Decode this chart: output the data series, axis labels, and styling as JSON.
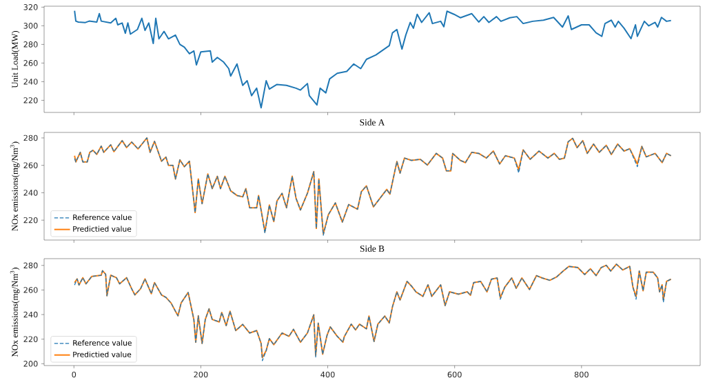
{
  "chart_data": [
    {
      "type": "line",
      "ylabel": "Unit Load(MW)",
      "xlim": [
        -47,
        987
      ],
      "xticks": [
        0,
        200,
        400,
        600,
        800
      ],
      "ylim": [
        207,
        321
      ],
      "yticks": [
        220,
        240,
        260,
        280,
        300,
        320
      ],
      "tick_labels": "y",
      "x": [
        1,
        3,
        7,
        18,
        24,
        36,
        40,
        43,
        58,
        66,
        69,
        76,
        81,
        85,
        89,
        100,
        107,
        112,
        118,
        125,
        129,
        134,
        142,
        149,
        160,
        167,
        174,
        182,
        189,
        193,
        200,
        215,
        218,
        226,
        236,
        244,
        247,
        257,
        262,
        266,
        273,
        280,
        288,
        295,
        303,
        308,
        320,
        335,
        350,
        357,
        368,
        371,
        383,
        388,
        397,
        403,
        415,
        430,
        441,
        452,
        461,
        476,
        497,
        502,
        509,
        517,
        523,
        530,
        535,
        541,
        548,
        560,
        565,
        578,
        583,
        588,
        599,
        609,
        627,
        638,
        646,
        654,
        666,
        673,
        687,
        698,
        708,
        723,
        740,
        756,
        770,
        779,
        784,
        800,
        812,
        823,
        832,
        837,
        847,
        853,
        858,
        867,
        878,
        885,
        888,
        899,
        906,
        916,
        920,
        926,
        934,
        941
      ],
      "series": [
        {
          "color": "#1f77b4",
          "values": [
            316,
            305,
            304,
            303.5,
            305,
            304,
            313,
            305,
            303,
            308,
            301,
            303,
            292,
            303,
            291,
            296,
            308,
            295,
            303,
            281,
            308,
            286,
            294,
            286,
            290,
            280,
            277,
            270,
            273,
            258,
            272,
            273,
            261,
            266,
            261,
            254,
            246,
            259,
            246,
            236,
            241,
            225,
            233,
            212,
            241,
            232,
            237,
            236,
            233,
            231,
            238,
            225,
            215,
            233,
            228,
            243,
            249,
            251,
            259,
            254,
            264,
            268.7,
            278.7,
            292.4,
            296,
            275,
            290,
            303.6,
            297.4,
            312.3,
            303.6,
            314,
            302.4,
            304.8,
            299,
            315.6,
            312.3,
            308.6,
            313,
            304,
            309.8,
            303.6,
            309.8,
            304.8,
            308.6,
            309.8,
            302.4,
            304.8,
            306,
            309,
            298.6,
            310.6,
            296,
            301,
            301,
            292.4,
            288.7,
            302.4,
            306,
            298.6,
            304.8,
            297.4,
            286.2,
            301,
            288.7,
            304.8,
            299.9,
            303.6,
            298.6,
            309,
            304.8,
            305.6
          ]
        }
      ]
    },
    {
      "type": "line",
      "title": "Side A",
      "ylabel": "NOx emissions(mg/Nm$^{3}$)",
      "xlim": [
        -47,
        987
      ],
      "xticks": [
        0,
        200,
        400,
        600,
        800
      ],
      "ylim": [
        205.5,
        284
      ],
      "yticks": [
        220,
        240,
        260,
        280
      ],
      "tick_labels": "y",
      "legend": "bottom left",
      "x": [
        1,
        3,
        10,
        14,
        21,
        25,
        30,
        36,
        43,
        47,
        58,
        63,
        76,
        83,
        91,
        101,
        109,
        115,
        120,
        127,
        138,
        145,
        149,
        156,
        160,
        167,
        174,
        182,
        191,
        196,
        202,
        211,
        218,
        226,
        231,
        238,
        247,
        257,
        266,
        271,
        277,
        288,
        291,
        301,
        308,
        315,
        320,
        328,
        335,
        344,
        350,
        357,
        368,
        378,
        382,
        386,
        393,
        401,
        412,
        423,
        433,
        447,
        453,
        461,
        472,
        493,
        498,
        509,
        514,
        521,
        532,
        546,
        557,
        571,
        581,
        587,
        594,
        597,
        609,
        617,
        627,
        638,
        650,
        661,
        671,
        680,
        694,
        701,
        708,
        719,
        733,
        747,
        757,
        765,
        773,
        779,
        786,
        793,
        802,
        809,
        819,
        828,
        839,
        847,
        857,
        867,
        876,
        888,
        895,
        902,
        916,
        927,
        934,
        941
      ],
      "series": [
        {
          "name": "Reference value",
          "color": "#1f77b4",
          "line_style": "dashed",
          "values": [
            265,
            262.5,
            269.5,
            262.5,
            262.5,
            269.5,
            271,
            268,
            274,
            269.5,
            275,
            270,
            278,
            273,
            277,
            272,
            276.5,
            280,
            269.5,
            277.5,
            263,
            266,
            260,
            260,
            250,
            264,
            259,
            263,
            225.6,
            250,
            232,
            253.7,
            243,
            252,
            243,
            252,
            241.4,
            238,
            237,
            243,
            229,
            229,
            238,
            210.5,
            231,
            219,
            234,
            239.6,
            229,
            252,
            236,
            227.4,
            239.6,
            255.4,
            214,
            250,
            209,
            224,
            232.6,
            218.6,
            231.4,
            228,
            240.8,
            245,
            229.7,
            242.4,
            239,
            262.8,
            254.3,
            265.3,
            263.6,
            264.4,
            260.2,
            268.7,
            265.3,
            256,
            256,
            268.7,
            263.6,
            262,
            269.5,
            268.7,
            265.3,
            270.4,
            261,
            267,
            265.3,
            254.5,
            271.3,
            264.4,
            270.4,
            265.3,
            268.7,
            264.4,
            265.3,
            277.2,
            279.7,
            272.9,
            278,
            268.7,
            275.5,
            269.5,
            274.6,
            267.9,
            275.5,
            270.4,
            272.1,
            259,
            273.8,
            266.2,
            268.7,
            262,
            268.7,
            267
          ]
        },
        {
          "name": "Predictied value",
          "color": "#ff7f0e",
          "line_style": "solid",
          "values": [
            267,
            262.5,
            269.5,
            262.5,
            262.5,
            269.5,
            271,
            268,
            274,
            269.5,
            275,
            270,
            278,
            273,
            277,
            272,
            276.5,
            280,
            269.5,
            277.5,
            263,
            266,
            260,
            260,
            250,
            264,
            259,
            263,
            225.6,
            250,
            232,
            253.7,
            243,
            252,
            243,
            252,
            241.4,
            238,
            237,
            243,
            229,
            229,
            238,
            211.6,
            231,
            219,
            234,
            239.6,
            229,
            252,
            236,
            227.4,
            239.6,
            255.4,
            214,
            250,
            210,
            224,
            232.6,
            218.6,
            231.4,
            228,
            240.8,
            245,
            229.7,
            242.4,
            239,
            262.8,
            254.3,
            265.3,
            263.6,
            264.4,
            260.2,
            268.7,
            265.3,
            256,
            256,
            268.7,
            263.6,
            262,
            269.5,
            268.7,
            265.3,
            270.4,
            261,
            267,
            265.3,
            256.8,
            271.3,
            264.4,
            270.4,
            265.3,
            268.7,
            264.4,
            265.3,
            277.2,
            279.7,
            272.9,
            278,
            268.7,
            275.5,
            269.5,
            274.6,
            267.9,
            275.5,
            270.4,
            272.1,
            261,
            273.8,
            266.2,
            268.7,
            262,
            268.7,
            267
          ]
        }
      ]
    },
    {
      "type": "line",
      "title": "Side B",
      "ylabel": "NOx emissions(mg/Nm$^{3}$)",
      "xlim": [
        -47,
        987
      ],
      "xticks": [
        0,
        200,
        400,
        600,
        800
      ],
      "ylim": [
        198.5,
        285.5
      ],
      "yticks": [
        200,
        220,
        240,
        260,
        280
      ],
      "legend": "bottom left",
      "x": [
        1,
        5,
        8,
        14,
        19,
        25,
        28,
        43,
        45,
        50,
        52,
        58,
        67,
        72,
        83,
        91,
        96,
        105,
        112,
        122,
        127,
        138,
        145,
        153,
        160,
        164,
        169,
        180,
        189,
        192,
        196,
        202,
        207,
        213,
        218,
        229,
        233,
        240,
        246,
        255,
        266,
        277,
        288,
        295,
        297,
        303,
        308,
        315,
        328,
        339,
        346,
        357,
        368,
        378,
        381,
        385,
        392,
        399,
        404,
        415,
        424,
        426,
        437,
        444,
        450,
        461,
        465,
        473,
        479,
        490,
        497,
        502,
        509,
        514,
        525,
        532,
        539,
        550,
        558,
        564,
        578,
        585,
        592,
        606,
        620,
        625,
        630,
        641,
        651,
        658,
        667,
        672,
        679,
        690,
        697,
        706,
        718,
        729,
        738,
        750,
        761,
        771,
        780,
        794,
        805,
        814,
        823,
        831,
        839,
        846,
        855,
        865,
        876,
        881,
        886,
        891,
        897,
        902,
        913,
        920,
        923,
        927,
        929,
        934,
        941
      ],
      "series": [
        {
          "name": "Reference value",
          "color": "#1f77b4",
          "line_style": "dashed",
          "values": [
            264,
            269,
            264,
            270,
            265,
            269,
            271,
            272,
            275.7,
            272.8,
            255.3,
            272,
            270,
            265,
            270,
            261,
            256,
            261,
            269,
            257,
            266,
            256,
            254,
            249.5,
            242.7,
            239,
            249.5,
            258,
            236,
            217.5,
            239,
            216.5,
            236,
            244.7,
            236,
            234,
            241.7,
            231,
            242.7,
            227,
            232,
            225,
            227,
            216.5,
            202.5,
            210.7,
            220.4,
            215.5,
            225,
            222.3,
            228,
            217.5,
            225,
            239.8,
            205.5,
            233,
            207.8,
            223.3,
            230,
            222.3,
            217.5,
            221.9,
            232.2,
            227.5,
            232.2,
            228.4,
            238.8,
            218.1,
            232.2,
            238.8,
            233.2,
            246.3,
            258.5,
            251.9,
            267,
            263.2,
            258.5,
            254.8,
            264.2,
            254.8,
            264.2,
            247.3,
            258.5,
            256.6,
            258.5,
            255.7,
            266,
            267,
            258.5,
            268.8,
            269.8,
            252.5,
            262.3,
            269.8,
            261.4,
            269.8,
            260.4,
            271.7,
            269.8,
            267.9,
            270.7,
            275.4,
            279.2,
            278.3,
            272.6,
            277.3,
            271.7,
            278.3,
            280.1,
            275.4,
            281,
            276.3,
            279.2,
            262.3,
            252.5,
            275.4,
            259.4,
            274.5,
            274.5,
            269.8,
            258.5,
            264.2,
            250,
            267,
            268.8
          ]
        },
        {
          "name": "Predictied value",
          "color": "#ff7f0e",
          "line_style": "solid",
          "values": [
            266,
            269,
            264,
            270,
            265,
            269,
            271,
            272,
            275.7,
            272.8,
            255.3,
            272,
            270,
            265,
            270,
            261,
            256,
            261,
            269,
            257,
            266,
            256,
            254,
            249.5,
            242.7,
            239,
            249.5,
            258,
            236,
            217.5,
            239,
            216.5,
            236,
            244.7,
            236,
            234,
            241.7,
            231,
            242.7,
            227,
            232,
            225,
            227,
            216.5,
            205,
            210.7,
            220.4,
            215.5,
            225,
            222.3,
            228,
            217.5,
            225,
            239.8,
            206.8,
            233,
            207.8,
            223.3,
            230,
            222.3,
            217.5,
            221.9,
            232.2,
            227.5,
            232.2,
            228.4,
            238.8,
            218.1,
            232.2,
            238.8,
            233.2,
            246.3,
            258.5,
            251.9,
            267,
            263.2,
            258.5,
            254.8,
            264.2,
            254.8,
            264.2,
            247.3,
            258.5,
            256.6,
            258.5,
            255.7,
            266,
            267,
            258.5,
            268.8,
            269.8,
            253.8,
            262.3,
            269.8,
            261.4,
            269.8,
            260.4,
            271.7,
            269.8,
            267.9,
            270.7,
            275.4,
            279.2,
            278.3,
            272.6,
            277.3,
            271.7,
            278.3,
            280.1,
            275.4,
            281,
            276.3,
            279.2,
            262.3,
            254.8,
            275.4,
            259.4,
            274.5,
            274.5,
            269.8,
            258.5,
            264.2,
            251.9,
            267,
            268.8
          ]
        }
      ]
    }
  ]
}
